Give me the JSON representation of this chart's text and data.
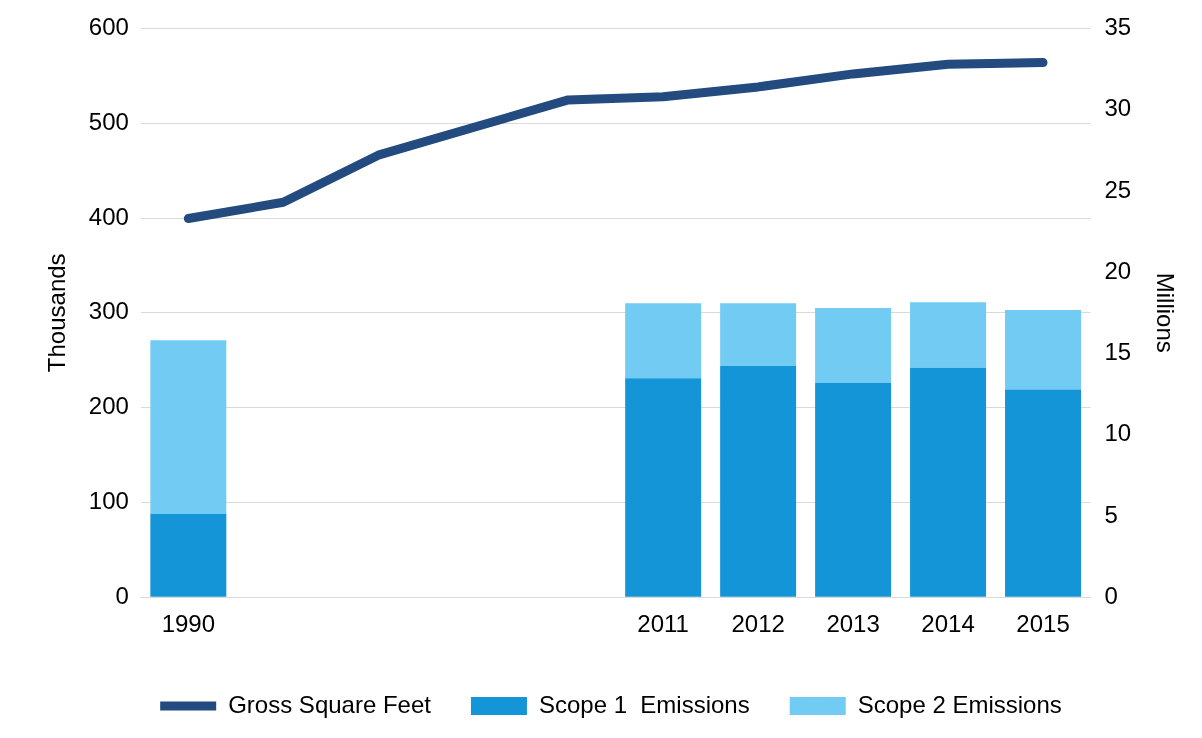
{
  "chart_data": {
    "type": "bar",
    "stacked": true,
    "ylabel": "Thousands",
    "y2label": "Millions",
    "categories": [
      "1990",
      null,
      null,
      null,
      null,
      "2011",
      "2012",
      "2013",
      "2014",
      "2015"
    ],
    "series": [
      {
        "name": "Scope 1  Emissions",
        "color": "#1495d8",
        "values": [
          88,
          null,
          null,
          null,
          null,
          231,
          244,
          226,
          242,
          219
        ]
      },
      {
        "name": "Scope 2 Emissions",
        "color": "#72cbf3",
        "values": [
          183,
          null,
          null,
          null,
          null,
          79,
          66,
          79,
          69,
          84
        ]
      },
      {
        "name": "Gross Square Feet",
        "type": "line",
        "axis": "y2",
        "color": "#234b7f",
        "values": [
          23.3,
          24.3,
          27.2,
          28.9,
          30.6,
          30.8,
          31.4,
          32.2,
          32.8,
          32.9
        ]
      }
    ],
    "ylim": [
      0,
      600
    ],
    "yticks": [
      0,
      100,
      200,
      300,
      400,
      500,
      600
    ],
    "y2lim": [
      0,
      35
    ],
    "y2ticks": [
      0,
      5,
      10,
      15,
      20,
      25,
      30,
      35
    ],
    "grid": "y",
    "legend": "bottom",
    "marker": "none",
    "line_style": "solid"
  }
}
